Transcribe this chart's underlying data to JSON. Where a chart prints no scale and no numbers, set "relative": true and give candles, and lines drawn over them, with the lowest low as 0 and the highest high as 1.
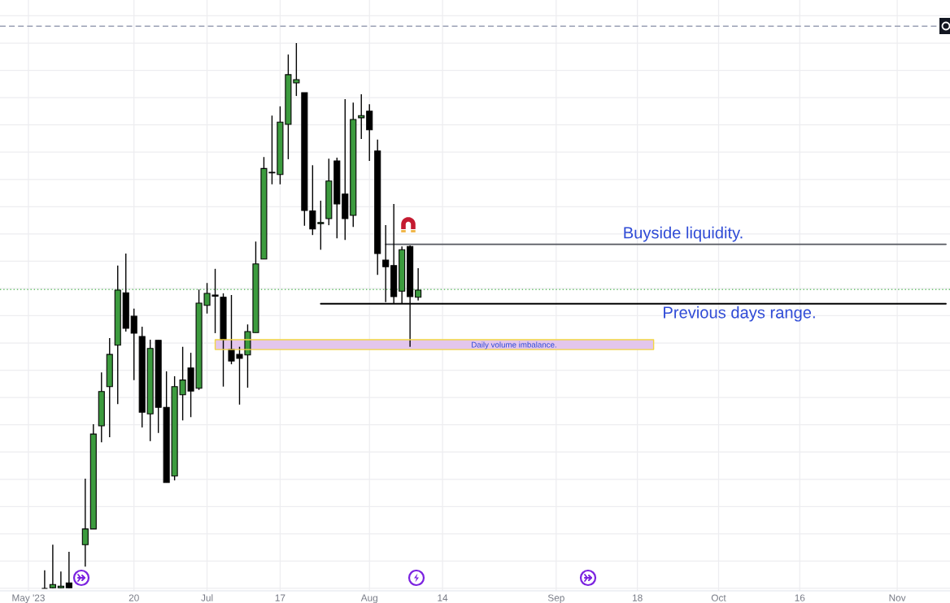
{
  "chart_data": {
    "type": "candlestick",
    "relative": true,
    "grid": true,
    "tick_labels": "x",
    "categories": [
      null,
      null,
      null,
      "May '23",
      null,
      null,
      null,
      null,
      null,
      null,
      null,
      null,
      null,
      null,
      null,
      null,
      "20",
      null,
      null,
      null,
      null,
      null,
      null,
      null,
      null,
      "Jul",
      null,
      null,
      null,
      null,
      null,
      null,
      null,
      null,
      "17",
      null,
      null,
      null,
      null,
      null,
      null,
      null,
      null,
      null,
      null,
      "Aug",
      null,
      null,
      null,
      null,
      null,
      null,
      null,
      null,
      "14",
      null,
      null,
      null,
      null,
      null,
      null,
      null,
      null,
      null,
      null,
      null,
      null,
      null,
      "Sep",
      null,
      null,
      null,
      null,
      null,
      null,
      null,
      null,
      null,
      "18",
      null,
      null,
      null,
      null,
      null,
      null,
      null,
      null,
      null,
      "Oct",
      null,
      null,
      null,
      null,
      null,
      null,
      null,
      null,
      null,
      "16",
      null,
      null,
      null,
      null,
      null,
      null,
      null,
      null,
      null,
      null,
      null,
      "Nov",
      null,
      null,
      null,
      null,
      null,
      null
    ],
    "ohlc": [
      null,
      null,
      null,
      null,
      null,
      [
        0.0,
        0.033,
        0.0,
        0.0
      ],
      [
        0.001,
        0.08,
        0.0,
        0.007
      ],
      [
        0.001,
        0.031,
        0.0,
        0.004
      ],
      [
        0.01,
        0.067,
        0.0,
        0.001
      ],
      null,
      [
        0.08,
        0.201,
        0.04,
        0.109
      ],
      [
        0.109,
        0.301,
        0.109,
        0.283
      ],
      [
        0.298,
        0.396,
        0.268,
        0.361
      ],
      [
        0.37,
        0.459,
        0.277,
        0.429
      ],
      [
        0.446,
        0.592,
        0.338,
        0.547
      ],
      [
        0.542,
        0.614,
        0.471,
        0.477
      ],
      [
        0.499,
        0.513,
        0.382,
        0.468
      ],
      [
        0.462,
        0.48,
        0.295,
        0.323
      ],
      [
        0.32,
        0.456,
        0.27,
        0.44
      ],
      [
        0.455,
        0.455,
        0.285,
        0.332
      ],
      [
        0.332,
        0.398,
        0.194,
        0.194
      ],
      [
        0.206,
        0.389,
        0.198,
        0.37
      ],
      [
        0.355,
        0.443,
        0.308,
        0.382
      ],
      [
        0.404,
        0.432,
        0.314,
        0.362
      ],
      [
        0.367,
        0.548,
        0.364,
        0.523
      ],
      [
        0.519,
        0.56,
        0.504,
        0.541
      ],
      [
        0.538,
        0.586,
        0.468,
        0.536
      ],
      [
        0.534,
        0.541,
        0.37,
        0.456
      ],
      [
        0.438,
        0.538,
        0.411,
        0.417
      ],
      [
        0.429,
        0.443,
        0.337,
        0.422
      ],
      [
        0.428,
        0.484,
        0.368,
        0.471
      ],
      [
        0.469,
        0.636,
        0.469,
        0.595
      ],
      [
        0.604,
        0.791,
        0.604,
        0.77
      ],
      [
        0.763,
        0.867,
        0.741,
        0.762
      ],
      [
        0.759,
        0.884,
        0.741,
        0.855
      ],
      [
        0.851,
        0.979,
        0.787,
        0.942
      ],
      [
        0.927,
        1.0,
        0.903,
        0.933
      ],
      [
        0.909,
        0.909,
        0.665,
        0.693
      ],
      [
        0.692,
        0.776,
        0.648,
        0.659
      ],
      [
        0.669,
        0.711,
        0.621,
        0.671
      ],
      [
        0.678,
        0.788,
        0.666,
        0.747
      ],
      [
        0.784,
        0.79,
        0.642,
        0.705
      ],
      [
        0.723,
        0.897,
        0.639,
        0.678
      ],
      [
        0.684,
        0.891,
        0.663,
        0.86
      ],
      [
        0.863,
        0.906,
        0.824,
        0.867
      ],
      [
        0.875,
        0.888,
        0.784,
        0.841
      ],
      [
        0.802,
        0.823,
        0.575,
        0.614
      ],
      [
        0.602,
        0.666,
        0.525,
        0.59
      ],
      [
        0.592,
        0.705,
        0.523,
        0.535
      ],
      [
        0.545,
        0.627,
        0.522,
        0.621
      ],
      [
        0.627,
        0.629,
        0.443,
        0.535
      ],
      [
        0.534,
        0.587,
        0.528,
        0.547
      ],
      null,
      null,
      null,
      null,
      null,
      null,
      null,
      null,
      null,
      null,
      null,
      null,
      null,
      null,
      null,
      null,
      null,
      null,
      null,
      null,
      null,
      null,
      null,
      null,
      null,
      null,
      null,
      null,
      null,
      null,
      null,
      null,
      null,
      null,
      null,
      null,
      null,
      null,
      null,
      null,
      null,
      null,
      null,
      null,
      null,
      null,
      null,
      null,
      null,
      null,
      null,
      null,
      null,
      null,
      null,
      null,
      null,
      null,
      null,
      null,
      null,
      null,
      null,
      null,
      null
    ],
    "colors": [
      null,
      null,
      null,
      null,
      null,
      "#000000",
      "#3c9b3e",
      "#3c9b3e",
      "#000000",
      null,
      "#3c9b3e",
      "#3c9b3e",
      "#3c9b3e",
      "#3c9b3e",
      "#3c9b3e",
      "#000000",
      "#000000",
      "#000000",
      "#3c9b3e",
      "#000000",
      "#000000",
      "#3c9b3e",
      "#3c9b3e",
      "#000000",
      "#3c9b3e",
      "#3c9b3e",
      "#000000",
      "#000000",
      "#000000",
      "#000000",
      "#3c9b3e",
      "#3c9b3e",
      "#3c9b3e",
      "#000000",
      "#3c9b3e",
      "#3c9b3e",
      "#3c9b3e",
      "#000000",
      "#000000",
      "#3c9b3e",
      "#3c9b3e",
      "#000000",
      "#000000",
      "#3c9b3e",
      "#3c9b3e",
      "#000000",
      "#000000",
      "#000000",
      "#000000",
      "#3c9b3e",
      "#000000",
      "#3c9b3e",
      null,
      null,
      null,
      null,
      null,
      null,
      null,
      null,
      null,
      null,
      null,
      null,
      null,
      null,
      null,
      null,
      null,
      null,
      null,
      null,
      null,
      null,
      null,
      null,
      null,
      null,
      null,
      null,
      null,
      null,
      null,
      null,
      null,
      null,
      null,
      null,
      null,
      null,
      null,
      null,
      null,
      null,
      null,
      null,
      null,
      null,
      null,
      null,
      null,
      null,
      null,
      null,
      null,
      null,
      null,
      null,
      null,
      null,
      null,
      null,
      null,
      null,
      null,
      null,
      null
    ],
    "series": [
      {
        "type": "line",
        "name": "Buyside liquidity.",
        "color": "#55575f",
        "values": [
          null,
          null,
          null,
          null,
          null,
          null,
          null,
          null,
          null,
          null,
          null,
          null,
          null,
          null,
          null,
          null,
          null,
          null,
          null,
          null,
          null,
          null,
          null,
          null,
          null,
          null,
          null,
          null,
          null,
          null,
          null,
          null,
          null,
          null,
          null,
          null,
          null,
          null,
          null,
          null,
          null,
          null,
          null,
          null,
          null,
          null,
          null,
          0.631,
          0.631,
          0.631,
          0.631,
          0.631,
          0.631,
          0.631,
          0.631,
          0.631,
          0.631,
          0.631,
          0.631,
          0.631,
          0.631,
          0.631,
          0.631,
          0.631,
          0.631,
          0.631,
          0.631,
          0.631,
          0.631,
          0.631,
          0.631,
          0.631,
          0.631,
          0.631,
          0.631,
          0.631,
          0.631,
          0.631,
          0.631,
          0.631,
          0.631,
          0.631,
          0.631,
          0.631,
          0.631,
          0.631,
          0.631,
          0.631,
          0.631,
          0.631,
          0.631,
          0.631,
          0.631,
          0.631,
          0.631,
          0.631,
          0.631,
          0.631,
          0.631,
          0.631,
          0.631,
          0.631,
          0.631,
          0.631,
          0.631,
          0.631,
          0.631,
          0.631,
          0.631,
          0.631,
          0.631,
          0.631,
          0.631,
          0.631,
          0.631,
          0.631,
          0.631
        ]
      },
      {
        "type": "line",
        "name": "Previous days range.",
        "color": "#000000",
        "values": [
          null,
          null,
          null,
          null,
          null,
          null,
          null,
          null,
          null,
          null,
          null,
          null,
          null,
          null,
          null,
          null,
          null,
          null,
          null,
          null,
          null,
          null,
          null,
          null,
          null,
          null,
          null,
          null,
          null,
          null,
          null,
          null,
          null,
          null,
          null,
          null,
          null,
          null,
          null,
          0.522,
          0.522,
          0.522,
          0.522,
          0.522,
          0.522,
          0.522,
          0.522,
          0.522,
          0.522,
          0.522,
          0.522,
          0.522,
          0.522,
          0.522,
          0.522,
          0.522,
          0.522,
          0.522,
          0.522,
          0.522,
          0.522,
          0.522,
          0.522,
          0.522,
          0.522,
          0.522,
          0.522,
          0.522,
          0.522,
          0.522,
          0.522,
          0.522,
          0.522,
          0.522,
          0.522,
          0.522,
          0.522,
          0.522,
          0.522,
          0.522,
          0.522,
          0.522,
          0.522,
          0.522,
          0.522,
          0.522,
          0.522,
          0.522,
          0.522,
          0.522,
          0.522,
          0.522,
          0.522,
          0.522,
          0.522,
          0.522,
          0.522,
          0.522,
          0.522,
          0.522,
          0.522,
          0.522,
          0.522,
          0.522,
          0.522,
          0.522,
          0.522,
          0.522,
          0.522,
          0.522,
          0.522,
          0.522,
          0.522,
          0.522,
          0.522,
          0.522,
          0.522
        ]
      },
      {
        "type": "line",
        "color": "#e3c6ec",
        "values": [
          null,
          null,
          null,
          null,
          null,
          null,
          null,
          null,
          null,
          null,
          null,
          null,
          null,
          null,
          null,
          null,
          null,
          null,
          null,
          null,
          null,
          null,
          null,
          null,
          null,
          null,
          null,
          null,
          null,
          null,
          null,
          null,
          null,
          null,
          null,
          null,
          null,
          null,
          null,
          null,
          null,
          null,
          null,
          null,
          null,
          null,
          null,
          null,
          null,
          null,
          null,
          null,
          null,
          null,
          null,
          null,
          null,
          null,
          null,
          null,
          null,
          null,
          null,
          null,
          null,
          null,
          null,
          null,
          null,
          null,
          null,
          null,
          null,
          null,
          null,
          null,
          null,
          null,
          null,
          null,
          null,
          null,
          null,
          null,
          null,
          null,
          null,
          null,
          null,
          null,
          null,
          null,
          null,
          null,
          null,
          null,
          null,
          null,
          null,
          null,
          null,
          null,
          null,
          null,
          null,
          null,
          null,
          null,
          null,
          null,
          null,
          null,
          null,
          null,
          null,
          null,
          null
        ],
        "upper": [
          null,
          null,
          null,
          null,
          null,
          null,
          null,
          null,
          null,
          null,
          null,
          null,
          null,
          null,
          null,
          null,
          null,
          null,
          null,
          null,
          null,
          null,
          null,
          null,
          null,
          null,
          0.456,
          0.456,
          0.456,
          0.456,
          0.456,
          0.456,
          0.456,
          0.456,
          0.456,
          0.456,
          0.456,
          0.456,
          0.456,
          0.456,
          0.456,
          0.456,
          0.456,
          0.456,
          0.456,
          0.456,
          0.456,
          0.456,
          0.456,
          0.456,
          0.456,
          0.456,
          0.456,
          0.456,
          0.456,
          0.456,
          0.456,
          0.456,
          0.456,
          0.456,
          0.456,
          0.456,
          0.456,
          0.456,
          0.456,
          0.456,
          0.456,
          0.456,
          0.456,
          0.456,
          0.456,
          0.456,
          0.456,
          0.456,
          0.456,
          0.456,
          0.456,
          0.456,
          0.456,
          0.456,
          0.456,
          null,
          null,
          null,
          null,
          null,
          null,
          null,
          null,
          null,
          null,
          null,
          null,
          null,
          null,
          null,
          null,
          null,
          null,
          null,
          null,
          null,
          null,
          null,
          null,
          null,
          null,
          null,
          null,
          null,
          null,
          null,
          null,
          null,
          null,
          null,
          null
        ],
        "lower": [
          null,
          null,
          null,
          null,
          null,
          null,
          null,
          null,
          null,
          null,
          null,
          null,
          null,
          null,
          null,
          null,
          null,
          null,
          null,
          null,
          null,
          null,
          null,
          null,
          null,
          null,
          0.438,
          0.438,
          0.438,
          0.438,
          0.438,
          0.438,
          0.438,
          0.438,
          0.438,
          0.438,
          0.438,
          0.438,
          0.438,
          0.438,
          0.438,
          0.438,
          0.438,
          0.438,
          0.438,
          0.438,
          0.438,
          0.438,
          0.438,
          0.438,
          0.438,
          0.438,
          0.438,
          0.438,
          0.438,
          0.438,
          0.438,
          0.438,
          0.438,
          0.438,
          0.438,
          0.438,
          0.438,
          0.438,
          0.438,
          0.438,
          0.438,
          0.438,
          0.438,
          0.438,
          0.438,
          0.438,
          0.438,
          0.438,
          0.438,
          0.438,
          0.438,
          0.438,
          0.438,
          0.438,
          0.438,
          null,
          null,
          null,
          null,
          null,
          null,
          null,
          null,
          null,
          null,
          null,
          null,
          null,
          null,
          null,
          null,
          null,
          null,
          null,
          null,
          null,
          null,
          null,
          null,
          null,
          null,
          null,
          null,
          null,
          null,
          null,
          null,
          null,
          null,
          null,
          null
        ]
      }
    ],
    "annotations": [
      "Daily volume imbalance."
    ],
    "ref_lines": [
      {
        "axis": "y",
        "value": 1.031,
        "color": "#9aa0b4",
        "line_style": "dashed"
      },
      {
        "axis": "y",
        "value": 0.548,
        "color": "#6cbf6f",
        "line_style": "dotted"
      }
    ]
  }
}
